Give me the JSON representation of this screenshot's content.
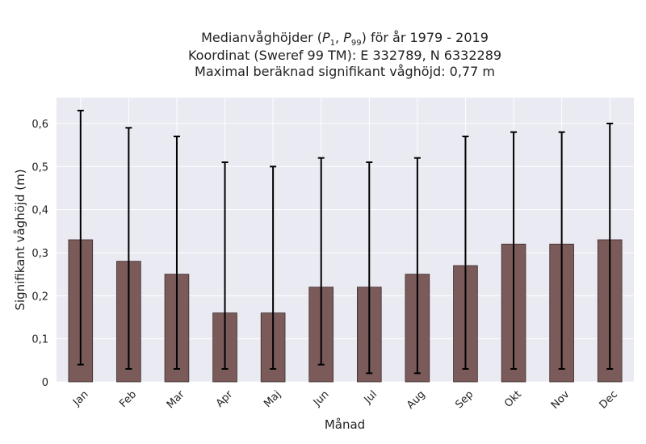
{
  "chart_data": {
    "type": "bar",
    "title_lines": [
      "Medianvåghöjder (P₁, P₉₉) för år 1979 - 2019",
      "Koordinat (Sweref 99 TM): E 332789, N 6332289",
      "Maximal beräknad signifikant våghöjd: 0,77 m"
    ],
    "xlabel": "Månad",
    "ylabel": "Signifikant våghöjd (m)",
    "categories": [
      "Jan",
      "Feb",
      "Mar",
      "Apr",
      "Maj",
      "Jun",
      "Jul",
      "Aug",
      "Sep",
      "Okt",
      "Nov",
      "Dec"
    ],
    "values": [
      0.33,
      0.28,
      0.25,
      0.16,
      0.16,
      0.22,
      0.22,
      0.25,
      0.27,
      0.32,
      0.32,
      0.33
    ],
    "error_low": [
      0.04,
      0.03,
      0.03,
      0.03,
      0.03,
      0.04,
      0.02,
      0.02,
      0.03,
      0.03,
      0.03,
      0.03
    ],
    "error_high": [
      0.63,
      0.59,
      0.57,
      0.51,
      0.5,
      0.52,
      0.51,
      0.52,
      0.57,
      0.58,
      0.58,
      0.6
    ],
    "yticks": [
      0,
      0.1,
      0.2,
      0.3,
      0.4,
      0.5,
      0.6
    ],
    "ytick_labels": [
      "0",
      "0,1",
      "0,2",
      "0,3",
      "0,4",
      "0,5",
      "0,6"
    ],
    "ylim": [
      0,
      0.66
    ],
    "grid": true,
    "colors": {
      "bar": "#7b5a5a",
      "bar_edge": "#3d2b2b",
      "plot_bg": "#eaeaf2",
      "grid": "#ffffff",
      "errorbar": "#000000"
    }
  }
}
